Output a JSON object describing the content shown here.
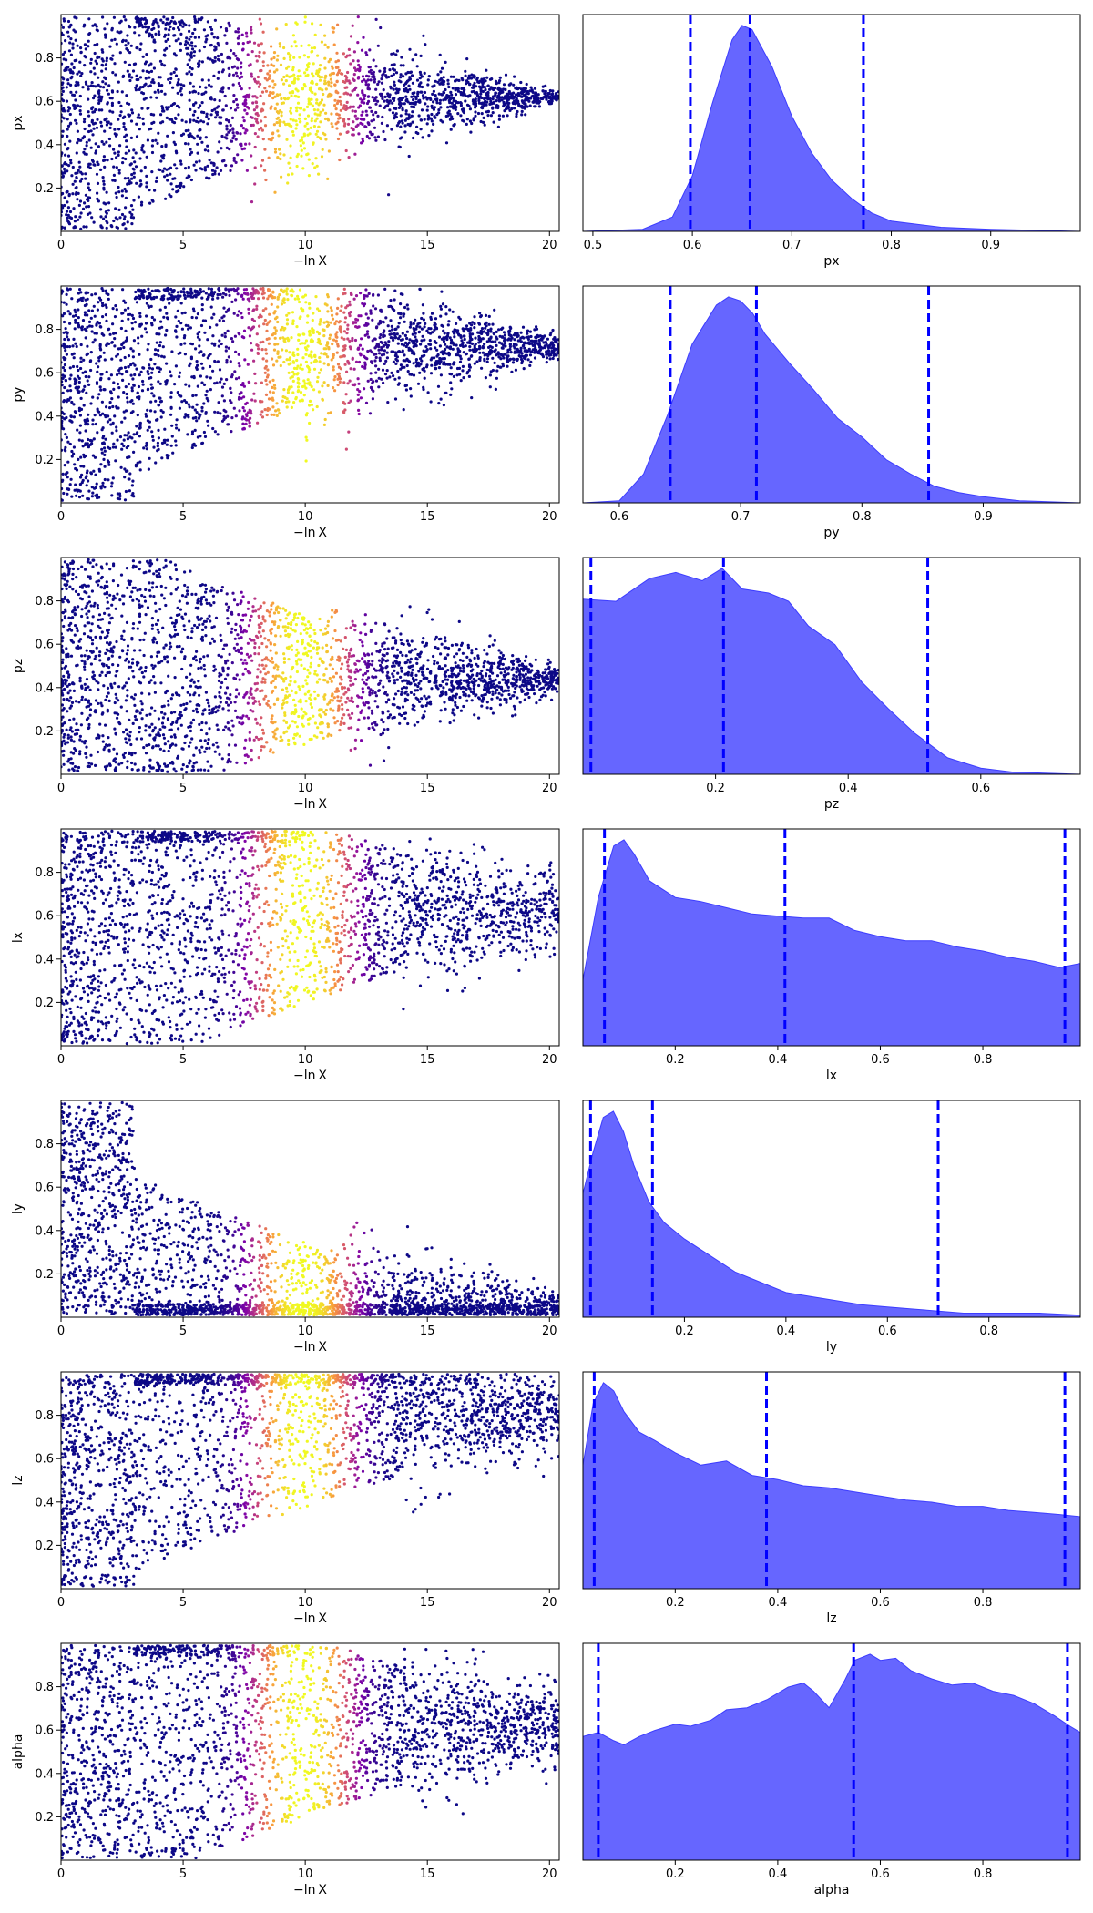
{
  "figure": {
    "trace_xlabel": "−ln X",
    "trace_xticks": [
      0,
      5,
      10,
      15,
      20
    ],
    "trace_xlim": [
      0,
      20.4
    ],
    "trace_yticks": [
      0.2,
      0.4,
      0.6,
      0.8
    ],
    "trace_ylim": [
      0,
      1
    ],
    "colormap": [
      "#0d0887",
      "#7e03a8",
      "#cc4778",
      "#f89540",
      "#f0f921"
    ],
    "posterior_fill": "#6666ff",
    "quantile_line_color": "#0000ff"
  },
  "chart_data": [
    {
      "type": "scatter",
      "param": "px",
      "ylabel": "px",
      "trace": {
        "lo_end_x": 3.0,
        "tail_x": 20.4,
        "peak": 0.62,
        "tail_sigma": 0.01,
        "upper_end_x": 7.5
      },
      "marginal": {
        "type": "area",
        "xlabel": "px",
        "xlim": [
          0.49,
          0.99
        ],
        "xticks": [
          0.5,
          0.6,
          0.7,
          0.8,
          0.9
        ],
        "quantiles": [
          0.598,
          0.658,
          0.772
        ],
        "x": [
          0.49,
          0.55,
          0.58,
          0.6,
          0.62,
          0.64,
          0.65,
          0.66,
          0.68,
          0.7,
          0.72,
          0.74,
          0.76,
          0.78,
          0.8,
          0.85,
          0.9,
          0.99
        ],
        "y": [
          0,
          0.01,
          0.07,
          0.27,
          0.62,
          0.93,
          1.0,
          0.98,
          0.8,
          0.56,
          0.38,
          0.25,
          0.16,
          0.09,
          0.05,
          0.02,
          0.01,
          0
        ]
      }
    },
    {
      "type": "scatter",
      "param": "py",
      "ylabel": "py",
      "trace": {
        "lo_end_x": 3.0,
        "tail_x": 20.4,
        "peak": 0.72,
        "tail_sigma": 0.04,
        "upper_end_x": 10.0
      },
      "marginal": {
        "type": "area",
        "xlabel": "py",
        "xlim": [
          0.57,
          0.98
        ],
        "xticks": [
          0.6,
          0.7,
          0.8,
          0.9
        ],
        "quantiles": [
          0.642,
          0.713,
          0.855
        ],
        "x": [
          0.57,
          0.6,
          0.62,
          0.64,
          0.66,
          0.68,
          0.69,
          0.7,
          0.71,
          0.72,
          0.74,
          0.76,
          0.78,
          0.8,
          0.82,
          0.84,
          0.86,
          0.88,
          0.9,
          0.93,
          0.98
        ],
        "y": [
          0,
          0.01,
          0.14,
          0.43,
          0.77,
          0.96,
          1.0,
          0.98,
          0.92,
          0.82,
          0.68,
          0.55,
          0.41,
          0.32,
          0.21,
          0.14,
          0.08,
          0.05,
          0.03,
          0.01,
          0
        ]
      }
    },
    {
      "type": "scatter",
      "param": "pz",
      "ylabel": "pz",
      "trace": {
        "lo_end_x": 3.5,
        "tail_x": 20.4,
        "peak": 0.44,
        "tail_sigma": 0.05,
        "upper_end_x": 11.0
      },
      "marginal": {
        "type": "area",
        "xlabel": "pz",
        "xlim": [
          0.0,
          0.75
        ],
        "xticks": [
          0.2,
          0.4,
          0.6
        ],
        "quantiles": [
          0.012,
          0.212,
          0.52
        ],
        "x": [
          0.0,
          0.05,
          0.1,
          0.14,
          0.18,
          0.21,
          0.24,
          0.28,
          0.31,
          0.34,
          0.38,
          0.42,
          0.46,
          0.5,
          0.55,
          0.6,
          0.65,
          0.75
        ],
        "y": [
          0.85,
          0.84,
          0.95,
          0.98,
          0.94,
          1.0,
          0.9,
          0.88,
          0.84,
          0.72,
          0.63,
          0.45,
          0.32,
          0.2,
          0.08,
          0.03,
          0.01,
          0
        ]
      }
    },
    {
      "type": "scatter",
      "param": "lx",
      "ylabel": "lx",
      "trace": {
        "lo_end_x": 3.0,
        "tail_x": 20.4,
        "peak": 0.62,
        "tail_sigma": 0.15,
        "upper_end_x": 14.0
      },
      "marginal": {
        "type": "area",
        "xlabel": "lx",
        "xlim": [
          0.02,
          0.99
        ],
        "xticks": [
          0.2,
          0.4,
          0.6,
          0.8
        ],
        "quantiles": [
          0.062,
          0.414,
          0.96
        ],
        "x": [
          0.02,
          0.05,
          0.08,
          0.1,
          0.12,
          0.15,
          0.2,
          0.25,
          0.3,
          0.35,
          0.4,
          0.45,
          0.5,
          0.55,
          0.6,
          0.65,
          0.7,
          0.75,
          0.8,
          0.85,
          0.9,
          0.95,
          0.99
        ],
        "y": [
          0.32,
          0.72,
          0.97,
          1.0,
          0.93,
          0.8,
          0.72,
          0.7,
          0.67,
          0.64,
          0.63,
          0.62,
          0.62,
          0.56,
          0.53,
          0.51,
          0.51,
          0.48,
          0.46,
          0.43,
          0.41,
          0.38,
          0.4
        ]
      }
    },
    {
      "type": "scatter",
      "param": "ly",
      "ylabel": "ly",
      "trace": {
        "lo_end_x": 3.0,
        "tail_x": 20.4,
        "peak": 0.04,
        "tail_sigma": 0.05,
        "upper_end_x": 11.5
      },
      "marginal": {
        "type": "area",
        "xlabel": "ly",
        "xlim": [
          0.0,
          0.98
        ],
        "xticks": [
          0.2,
          0.4,
          0.6,
          0.8
        ],
        "quantiles": [
          0.015,
          0.137,
          0.7
        ],
        "x": [
          0.0,
          0.02,
          0.04,
          0.06,
          0.08,
          0.1,
          0.13,
          0.16,
          0.2,
          0.25,
          0.3,
          0.35,
          0.4,
          0.45,
          0.5,
          0.55,
          0.6,
          0.65,
          0.7,
          0.75,
          0.8,
          0.9,
          0.98
        ],
        "y": [
          0.6,
          0.8,
          0.97,
          1.0,
          0.9,
          0.74,
          0.56,
          0.46,
          0.38,
          0.3,
          0.22,
          0.17,
          0.12,
          0.1,
          0.08,
          0.06,
          0.05,
          0.04,
          0.03,
          0.02,
          0.02,
          0.02,
          0.01
        ]
      }
    },
    {
      "type": "scatter",
      "param": "lz",
      "ylabel": "lz",
      "trace": {
        "lo_end_x": 3.0,
        "tail_x": 20.4,
        "peak": 0.8,
        "tail_sigma": 0.15,
        "upper_end_x": 14.0
      },
      "marginal": {
        "type": "area",
        "xlabel": "lz",
        "xlim": [
          0.02,
          0.99
        ],
        "xticks": [
          0.2,
          0.4,
          0.6,
          0.8
        ],
        "quantiles": [
          0.042,
          0.378,
          0.96
        ],
        "x": [
          0.02,
          0.04,
          0.06,
          0.08,
          0.1,
          0.13,
          0.16,
          0.2,
          0.25,
          0.3,
          0.35,
          0.4,
          0.45,
          0.5,
          0.55,
          0.6,
          0.65,
          0.7,
          0.75,
          0.8,
          0.85,
          0.9,
          0.95,
          0.99
        ],
        "y": [
          0.6,
          0.9,
          1.0,
          0.96,
          0.86,
          0.76,
          0.72,
          0.66,
          0.6,
          0.62,
          0.55,
          0.53,
          0.5,
          0.49,
          0.47,
          0.45,
          0.43,
          0.42,
          0.4,
          0.4,
          0.38,
          0.37,
          0.36,
          0.35
        ]
      }
    },
    {
      "type": "scatter",
      "param": "alpha",
      "ylabel": "alpha",
      "trace": {
        "lo_end_x": 3.0,
        "tail_x": 20.4,
        "peak": 0.62,
        "tail_sigma": 0.15,
        "upper_end_x": 14.0
      },
      "marginal": {
        "type": "area",
        "xlabel": "alpha",
        "xlim": [
          0.02,
          0.99
        ],
        "xticks": [
          0.2,
          0.4,
          0.6,
          0.8
        ],
        "quantiles": [
          0.05,
          0.548,
          0.965
        ],
        "x": [
          0.02,
          0.05,
          0.08,
          0.1,
          0.13,
          0.16,
          0.2,
          0.23,
          0.27,
          0.3,
          0.34,
          0.38,
          0.42,
          0.45,
          0.47,
          0.5,
          0.53,
          0.55,
          0.58,
          0.6,
          0.63,
          0.66,
          0.7,
          0.74,
          0.78,
          0.82,
          0.86,
          0.9,
          0.94,
          0.97,
          0.99
        ],
        "y": [
          0.6,
          0.62,
          0.58,
          0.56,
          0.6,
          0.63,
          0.66,
          0.65,
          0.68,
          0.73,
          0.74,
          0.78,
          0.84,
          0.86,
          0.82,
          0.74,
          0.87,
          0.97,
          1.0,
          0.97,
          0.98,
          0.92,
          0.88,
          0.85,
          0.86,
          0.82,
          0.8,
          0.76,
          0.7,
          0.65,
          0.62
        ]
      }
    }
  ]
}
